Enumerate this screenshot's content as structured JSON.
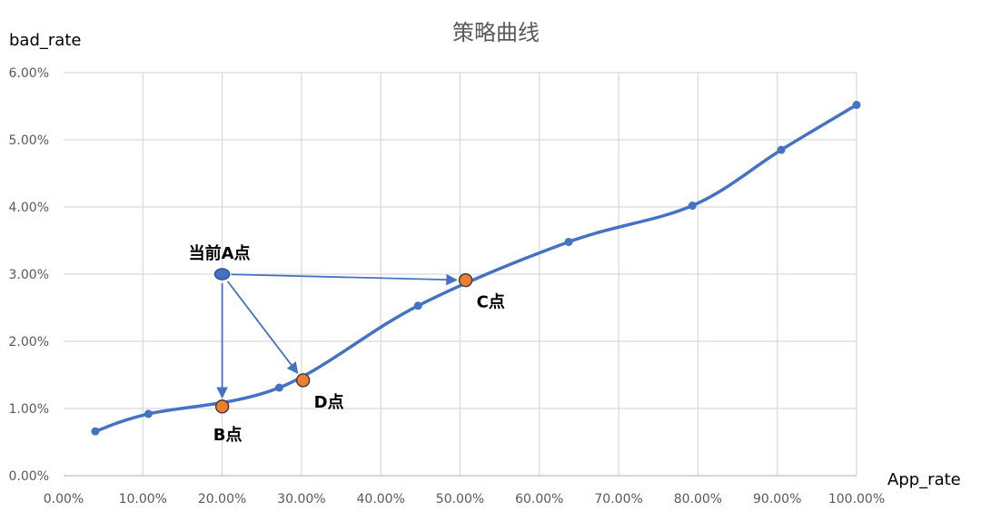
{
  "chart_data": {
    "type": "line",
    "title": "策略曲线",
    "xlabel": "App_rate",
    "ylabel": "bad_rate",
    "xlim": [
      0,
      1.0
    ],
    "ylim": [
      0,
      0.06
    ],
    "x_ticks": [
      "0.00%",
      "10.00%",
      "20.00%",
      "30.00%",
      "40.00%",
      "50.00%",
      "60.00%",
      "70.00%",
      "80.00%",
      "90.00%",
      "100.00%"
    ],
    "y_ticks": [
      "0.00%",
      "1.00%",
      "2.00%",
      "3.00%",
      "4.00%",
      "5.00%",
      "6.00%"
    ],
    "grid": true,
    "legend": "none",
    "series": [
      {
        "color": "#4472c4",
        "smooth": true,
        "points": [
          {
            "x": 0.04,
            "y": 0.0066
          },
          {
            "x": 0.107,
            "y": 0.0092
          },
          {
            "x": 0.272,
            "y": 0.0131
          },
          {
            "x": 0.447,
            "y": 0.0253
          },
          {
            "x": 0.637,
            "y": 0.0348
          },
          {
            "x": 0.793,
            "y": 0.0402
          },
          {
            "x": 0.905,
            "y": 0.0485
          },
          {
            "x": 1.0,
            "y": 0.0552
          }
        ]
      }
    ],
    "annotations": [
      {
        "label": "当前A点",
        "x": 0.2,
        "y": 0.03,
        "color": "#4472c4",
        "label_position": "above"
      },
      {
        "label": "B点",
        "x": 0.2,
        "y": 0.0103,
        "color": "#ed7d31",
        "label_position": "below"
      },
      {
        "label": "C点",
        "x": 0.507,
        "y": 0.0291,
        "color": "#ed7d31",
        "label_position": "below-right"
      },
      {
        "label": "D点",
        "x": 0.302,
        "y": 0.0142,
        "color": "#ed7d31",
        "label_position": "below-right"
      }
    ],
    "arrows": [
      {
        "from": "当前A点",
        "to": "B点"
      },
      {
        "from": "当前A点",
        "to": "C点"
      },
      {
        "from": "当前A点",
        "to": "D点"
      }
    ]
  }
}
